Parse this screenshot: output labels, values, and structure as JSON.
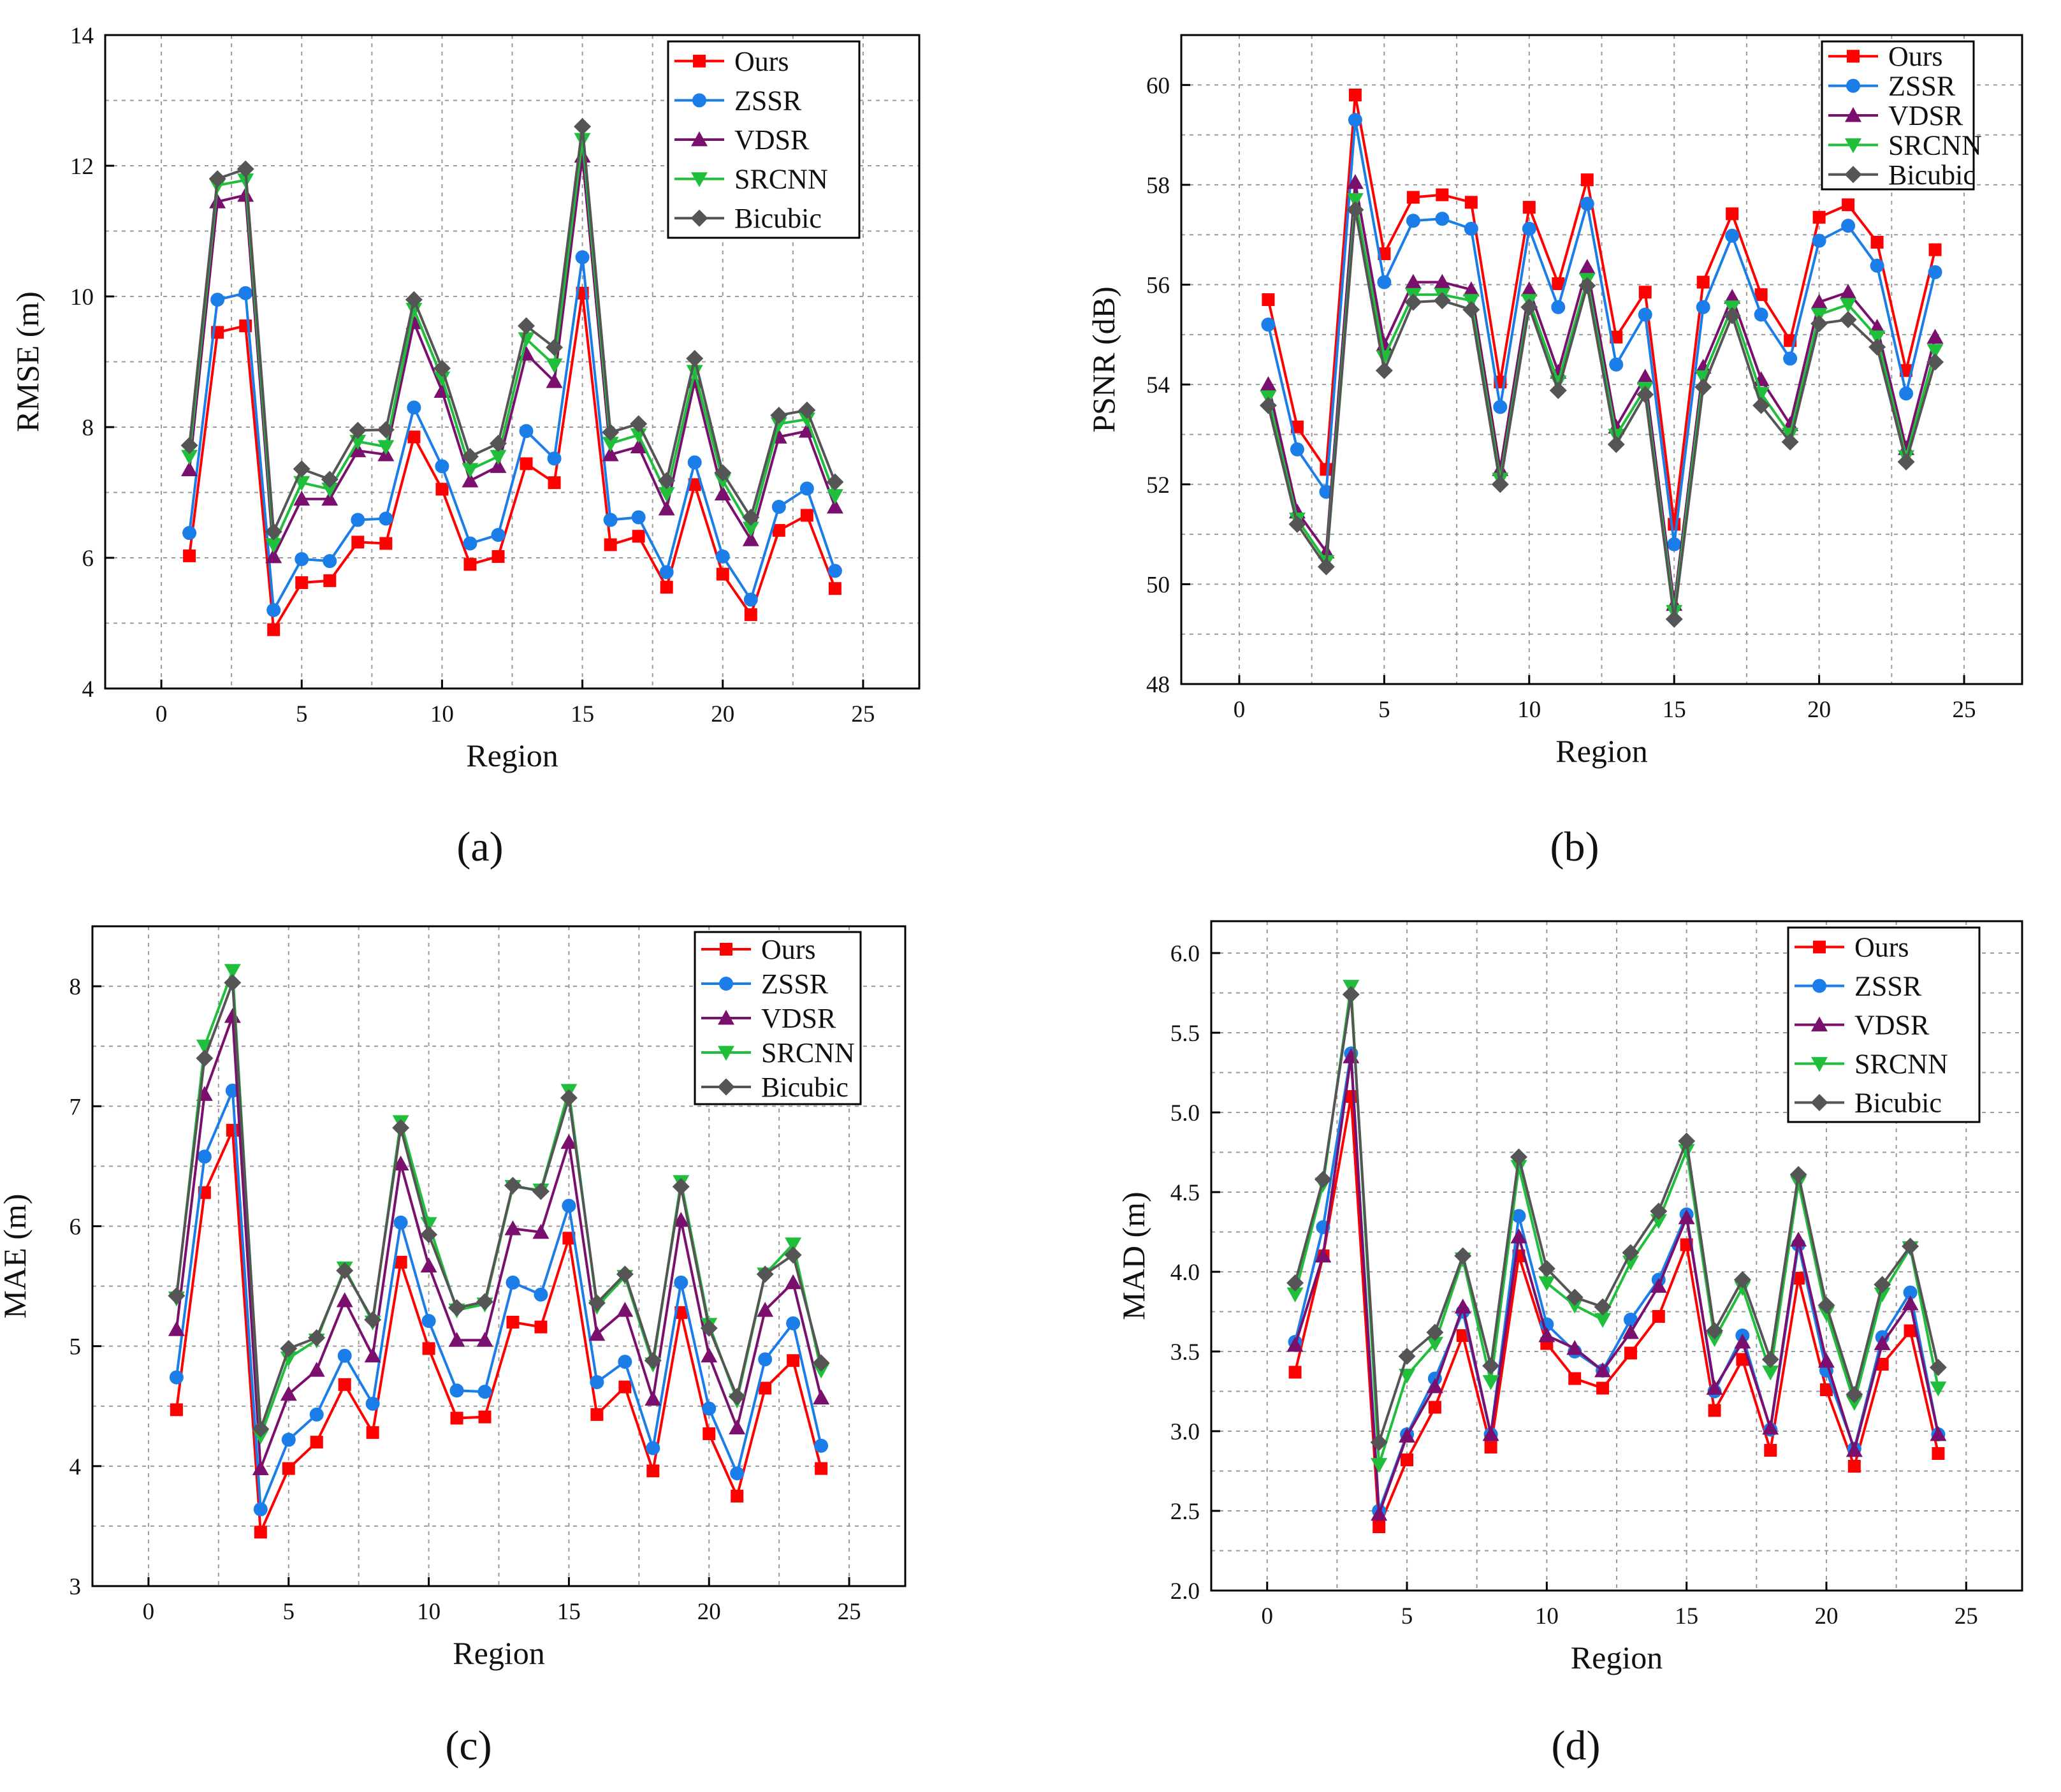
{
  "figure": {
    "captions": [
      "(a)",
      "(b)",
      "(c)",
      "(d)"
    ]
  },
  "styles": {
    "series_colors": {
      "Ours": "#ff0000",
      "ZSSR": "#1a7de8",
      "VDSR": "#7a0f6e",
      "SRCNN": "#1fbf3c",
      "Bicubic": "#555555"
    },
    "series_markers": {
      "Ours": "square",
      "ZSSR": "circle",
      "VDSR": "triangle-up",
      "SRCNN": "triangle-down",
      "Bicubic": "diamond"
    },
    "grid_color": "#9a9a9a",
    "axis_color": "#000000"
  },
  "chart_data": [
    {
      "type": "line",
      "panel": "(a)",
      "title": "",
      "xlabel": "Region",
      "ylabel": "RMSE (m)",
      "xlim": [
        -2,
        27
      ],
      "ylim": [
        4,
        14
      ],
      "xticks": [
        0,
        5,
        10,
        15,
        20,
        25
      ],
      "yticks": [
        4,
        6,
        8,
        10,
        12,
        14
      ],
      "ytick_labels": [
        "4",
        "6",
        "8",
        "10",
        "12",
        "14"
      ],
      "grid": true,
      "legend_position": "top-right",
      "x": [
        1,
        2,
        3,
        4,
        5,
        6,
        7,
        8,
        9,
        10,
        11,
        12,
        13,
        14,
        15,
        16,
        17,
        18,
        19,
        20,
        21,
        22,
        23,
        24
      ],
      "series": [
        {
          "name": "Ours",
          "values": [
            6.03,
            9.45,
            9.55,
            4.9,
            5.62,
            5.65,
            6.24,
            6.22,
            7.85,
            7.05,
            5.9,
            6.02,
            7.44,
            7.15,
            10.05,
            6.2,
            6.33,
            5.55,
            7.12,
            5.75,
            5.13,
            6.42,
            6.65,
            5.53
          ]
        },
        {
          "name": "ZSSR",
          "values": [
            6.38,
            9.95,
            10.05,
            5.2,
            5.98,
            5.95,
            6.58,
            6.6,
            8.3,
            7.4,
            6.22,
            6.35,
            7.94,
            7.52,
            10.6,
            6.58,
            6.62,
            5.78,
            7.46,
            6.02,
            5.36,
            6.78,
            7.06,
            5.8
          ]
        },
        {
          "name": "VDSR",
          "values": [
            7.35,
            11.45,
            11.55,
            6.02,
            6.9,
            6.9,
            7.64,
            7.58,
            9.6,
            8.55,
            7.18,
            7.4,
            9.12,
            8.7,
            12.15,
            7.58,
            7.7,
            6.75,
            8.7,
            6.98,
            6.28,
            7.85,
            7.94,
            6.78
          ]
        },
        {
          "name": "SRCNN",
          "values": [
            7.55,
            11.7,
            11.78,
            6.2,
            7.15,
            7.05,
            7.78,
            7.7,
            9.8,
            8.75,
            7.35,
            7.55,
            9.35,
            8.95,
            12.4,
            7.75,
            7.88,
            6.98,
            8.85,
            7.18,
            6.45,
            8.05,
            8.12,
            6.95
          ]
        },
        {
          "name": "Bicubic",
          "values": [
            7.72,
            11.8,
            11.95,
            6.4,
            7.36,
            7.2,
            7.95,
            7.96,
            9.95,
            8.9,
            7.55,
            7.75,
            9.55,
            9.22,
            12.6,
            7.92,
            8.05,
            7.18,
            9.05,
            7.3,
            6.62,
            8.18,
            8.26,
            7.16
          ]
        }
      ]
    },
    {
      "type": "line",
      "panel": "(b)",
      "title": "",
      "xlabel": "Region",
      "ylabel": "PSNR (dB)",
      "xlim": [
        -2,
        27
      ],
      "ylim": [
        48,
        61
      ],
      "xticks": [
        0,
        5,
        10,
        15,
        20,
        25
      ],
      "yticks": [
        48,
        50,
        52,
        54,
        56,
        58,
        60
      ],
      "ytick_labels": [
        "48",
        "50",
        "52",
        "54",
        "56",
        "58",
        "60"
      ],
      "grid": true,
      "legend_position": "top-right",
      "x": [
        1,
        2,
        3,
        4,
        5,
        6,
        7,
        8,
        9,
        10,
        11,
        12,
        13,
        14,
        15,
        16,
        17,
        18,
        19,
        20,
        21,
        22,
        23,
        24
      ],
      "series": [
        {
          "name": "Ours",
          "values": [
            55.7,
            53.15,
            52.3,
            59.8,
            56.62,
            57.75,
            57.8,
            57.65,
            54.05,
            57.55,
            56.02,
            58.1,
            54.95,
            55.85,
            51.2,
            56.05,
            57.42,
            55.8,
            54.88,
            57.35,
            57.6,
            56.85,
            54.28,
            56.7
          ]
        },
        {
          "name": "ZSSR",
          "values": [
            55.2,
            52.7,
            51.85,
            59.3,
            56.05,
            57.28,
            57.32,
            57.12,
            53.55,
            57.12,
            55.55,
            57.62,
            54.4,
            55.4,
            50.8,
            55.55,
            56.98,
            55.4,
            54.52,
            56.88,
            57.18,
            56.38,
            53.82,
            56.25
          ]
        },
        {
          "name": "VDSR",
          "values": [
            54.0,
            51.45,
            50.65,
            58.05,
            54.8,
            56.05,
            56.05,
            55.9,
            52.3,
            55.9,
            54.25,
            56.35,
            53.15,
            54.15,
            49.6,
            54.35,
            55.75,
            54.1,
            53.2,
            55.65,
            55.85,
            55.15,
            52.72,
            54.95
          ]
        },
        {
          "name": "SRCNN",
          "values": [
            53.75,
            51.3,
            50.45,
            57.7,
            54.55,
            55.8,
            55.8,
            55.68,
            52.1,
            55.68,
            54.05,
            56.1,
            52.98,
            53.92,
            49.45,
            54.15,
            55.55,
            53.82,
            53.0,
            55.4,
            55.6,
            54.95,
            52.55,
            54.68
          ]
        },
        {
          "name": "Bicubic",
          "values": [
            53.58,
            51.2,
            50.35,
            57.5,
            54.28,
            55.65,
            55.68,
            55.5,
            52.0,
            55.55,
            53.88,
            55.98,
            52.8,
            53.8,
            49.3,
            53.95,
            55.38,
            53.58,
            52.85,
            55.22,
            55.3,
            54.75,
            52.45,
            54.45
          ]
        }
      ]
    },
    {
      "type": "line",
      "panel": "(c)",
      "title": "",
      "xlabel": "Region",
      "ylabel": "MAE (m)",
      "xlim": [
        -2,
        27
      ],
      "ylim": [
        3,
        8.5
      ],
      "xticks": [
        0,
        5,
        10,
        15,
        20,
        25
      ],
      "yticks": [
        3,
        4,
        5,
        6,
        7,
        8
      ],
      "ytick_labels": [
        "3",
        "4",
        "5",
        "6",
        "7",
        "8"
      ],
      "grid": true,
      "legend_position": "top-right",
      "x": [
        1,
        2,
        3,
        4,
        5,
        6,
        7,
        8,
        9,
        10,
        11,
        12,
        13,
        14,
        15,
        16,
        17,
        18,
        19,
        20,
        21,
        22,
        23,
        24
      ],
      "series": [
        {
          "name": "Ours",
          "values": [
            4.47,
            6.28,
            6.8,
            3.45,
            3.98,
            4.2,
            4.68,
            4.28,
            5.7,
            4.98,
            4.4,
            4.41,
            5.2,
            5.16,
            5.9,
            4.43,
            4.66,
            3.96,
            5.28,
            4.27,
            3.75,
            4.65,
            4.88,
            3.98
          ]
        },
        {
          "name": "ZSSR",
          "values": [
            4.74,
            6.58,
            7.13,
            3.64,
            4.22,
            4.43,
            4.92,
            4.52,
            6.03,
            5.21,
            4.63,
            4.62,
            5.53,
            5.43,
            6.17,
            4.7,
            4.87,
            4.15,
            5.53,
            4.48,
            3.94,
            4.89,
            5.19,
            4.17
          ]
        },
        {
          "name": "VDSR",
          "values": [
            5.14,
            7.1,
            7.75,
            3.98,
            4.6,
            4.8,
            5.38,
            4.92,
            6.52,
            5.67,
            5.05,
            5.05,
            5.98,
            5.95,
            6.7,
            5.1,
            5.3,
            4.56,
            6.05,
            4.92,
            4.32,
            5.3,
            5.53,
            4.57
          ]
        },
        {
          "name": "SRCNN",
          "values": [
            5.4,
            7.5,
            8.13,
            4.25,
            4.9,
            5.05,
            5.65,
            5.2,
            6.87,
            6.02,
            5.3,
            5.35,
            6.33,
            6.3,
            7.13,
            5.33,
            5.58,
            4.85,
            6.37,
            5.18,
            4.55,
            5.6,
            5.85,
            4.8
          ]
        },
        {
          "name": "Bicubic",
          "values": [
            5.42,
            7.4,
            8.03,
            4.31,
            4.98,
            5.07,
            5.63,
            5.22,
            6.82,
            5.93,
            5.32,
            5.37,
            6.34,
            6.29,
            7.07,
            5.36,
            5.6,
            4.88,
            6.33,
            5.15,
            4.58,
            5.6,
            5.76,
            4.86
          ]
        }
      ]
    },
    {
      "type": "line",
      "panel": "(d)",
      "title": "",
      "xlabel": "Region",
      "ylabel": "MAD (m)",
      "xlim": [
        -2,
        27
      ],
      "ylim": [
        2.0,
        6.2
      ],
      "xticks": [
        0,
        5,
        10,
        15,
        20,
        25
      ],
      "yticks": [
        2.0,
        2.5,
        3.0,
        3.5,
        4.0,
        4.5,
        5.0,
        5.5,
        6.0
      ],
      "ytick_labels": [
        "2.0",
        "2.5",
        "3.0",
        "3.5",
        "4.0",
        "4.5",
        "5.0",
        "5.5",
        "6.0"
      ],
      "grid": true,
      "legend_position": "top-right",
      "x": [
        1,
        2,
        3,
        4,
        5,
        6,
        7,
        8,
        9,
        10,
        11,
        12,
        13,
        14,
        15,
        16,
        17,
        18,
        19,
        20,
        21,
        22,
        23,
        24
      ],
      "series": [
        {
          "name": "Ours",
          "values": [
            3.37,
            4.1,
            5.1,
            2.4,
            2.82,
            3.15,
            3.6,
            2.9,
            4.1,
            3.55,
            3.33,
            3.27,
            3.49,
            3.72,
            4.17,
            3.13,
            3.45,
            2.88,
            3.96,
            3.26,
            2.78,
            3.42,
            3.63,
            2.86
          ]
        },
        {
          "name": "ZSSR",
          "values": [
            3.56,
            4.28,
            5.37,
            2.5,
            2.98,
            3.33,
            3.75,
            2.98,
            4.35,
            3.67,
            3.5,
            3.38,
            3.7,
            3.95,
            4.36,
            3.25,
            3.6,
            3.01,
            4.17,
            3.38,
            2.89,
            3.59,
            3.87,
            2.98
          ]
        },
        {
          "name": "VDSR",
          "values": [
            3.54,
            4.1,
            5.35,
            2.48,
            2.97,
            3.28,
            3.78,
            2.98,
            4.22,
            3.6,
            3.52,
            3.38,
            3.62,
            3.91,
            4.34,
            3.27,
            3.56,
            3.02,
            4.2,
            3.44,
            2.88,
            3.55,
            3.8,
            2.98
          ]
        },
        {
          "name": "SRCNN",
          "values": [
            3.86,
            4.55,
            5.79,
            2.79,
            3.35,
            3.55,
            4.08,
            3.31,
            4.66,
            3.93,
            3.79,
            3.7,
            4.06,
            4.32,
            4.76,
            3.58,
            3.9,
            3.37,
            4.56,
            3.74,
            3.18,
            3.86,
            4.15,
            3.27
          ]
        },
        {
          "name": "Bicubic",
          "values": [
            3.93,
            4.58,
            5.74,
            2.93,
            3.47,
            3.62,
            4.1,
            3.41,
            4.72,
            4.02,
            3.84,
            3.78,
            4.12,
            4.38,
            4.82,
            3.63,
            3.95,
            3.45,
            4.61,
            3.79,
            3.23,
            3.92,
            4.16,
            3.4
          ]
        }
      ]
    }
  ]
}
